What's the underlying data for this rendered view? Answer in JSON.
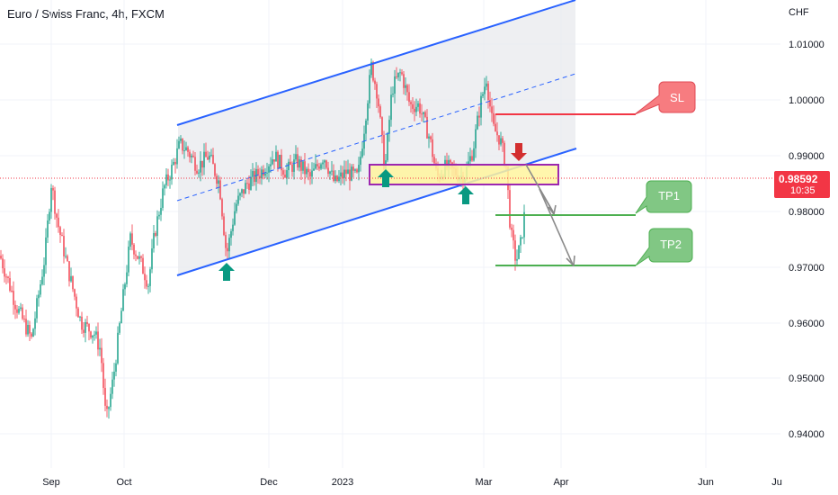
{
  "chart_data": {
    "type": "candlestick",
    "title": "Euro / Swiss Franc, 4h, FXCM",
    "currency": "CHF",
    "y_ticks": [
      "1.01000",
      "1.00000",
      "0.99000",
      "0.98000",
      "0.97000",
      "0.96000",
      "0.95000",
      "0.94000"
    ],
    "x_ticks": [
      "Sep",
      "Oct",
      "Dec",
      "2023",
      "Mar",
      "Apr",
      "Jun",
      "Ju"
    ],
    "ylim": [
      0.935,
      1.018
    ],
    "current_price": "0.98592",
    "countdown": "10:35",
    "annotations": {
      "sl_label": "SL",
      "tp1_label": "TP1",
      "tp2_label": "TP2",
      "sl_level": 0.9975,
      "tp1_level": 0.979,
      "tp2_level": 0.97,
      "channel": "ascending",
      "support_zone": "0.9848–0.9883",
      "up_arrows": 3,
      "down_arrows": 1
    },
    "colors": {
      "up_candle": "#089981",
      "down_candle": "#f23645",
      "channel_line": "#2962ff",
      "zone_fill": "#fff59d",
      "zone_border": "#9c27b0",
      "arrow_up": "#089981",
      "arrow_down": "#d32f2f",
      "sl_box": "#f77c80",
      "tp_box": "#81c784",
      "projection": "#8a8a8a"
    }
  }
}
